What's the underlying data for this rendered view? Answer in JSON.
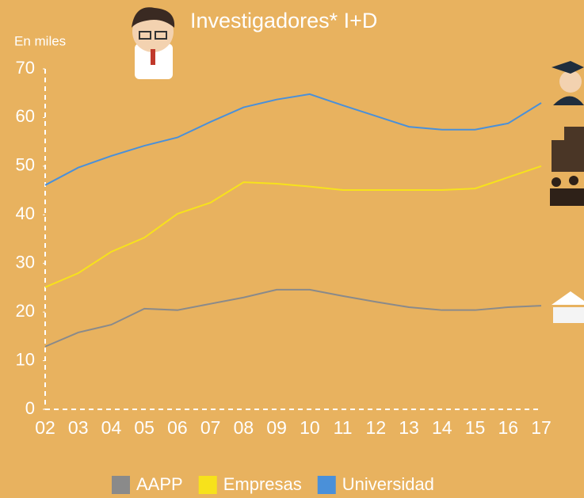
{
  "chart_data": {
    "type": "line",
    "title": "Investigadores* I+D",
    "y_label": "En miles",
    "categories": [
      "02",
      "03",
      "04",
      "05",
      "06",
      "07",
      "08",
      "09",
      "10",
      "11",
      "12",
      "13",
      "14",
      "15",
      "16",
      "17"
    ],
    "series": [
      {
        "name": "AAPP",
        "color": "#8a8a8a",
        "values": [
          12.9,
          15.8,
          17.4,
          20.7,
          20.4,
          21.7,
          23.0,
          24.6,
          24.6,
          23.3,
          22.1,
          21.0,
          20.4,
          20.4,
          21.0,
          21.3
        ]
      },
      {
        "name": "Empresas",
        "color": "#f7e21b",
        "values": [
          25.1,
          28.0,
          32.4,
          35.3,
          40.2,
          42.5,
          46.7,
          46.4,
          45.8,
          45.1,
          45.1,
          45.1,
          45.1,
          45.4,
          47.7,
          50.0
        ]
      },
      {
        "name": "Universidad",
        "color": "#4a90d9",
        "values": [
          46.1,
          49.7,
          52.1,
          54.2,
          55.9,
          59.1,
          62.1,
          63.7,
          64.8,
          62.5,
          60.3,
          58.1,
          57.5,
          57.5,
          58.8,
          63.0
        ]
      }
    ],
    "ylim": [
      0,
      70
    ],
    "yticks": [
      0,
      10,
      20,
      30,
      40,
      50,
      60,
      70
    ]
  }
}
